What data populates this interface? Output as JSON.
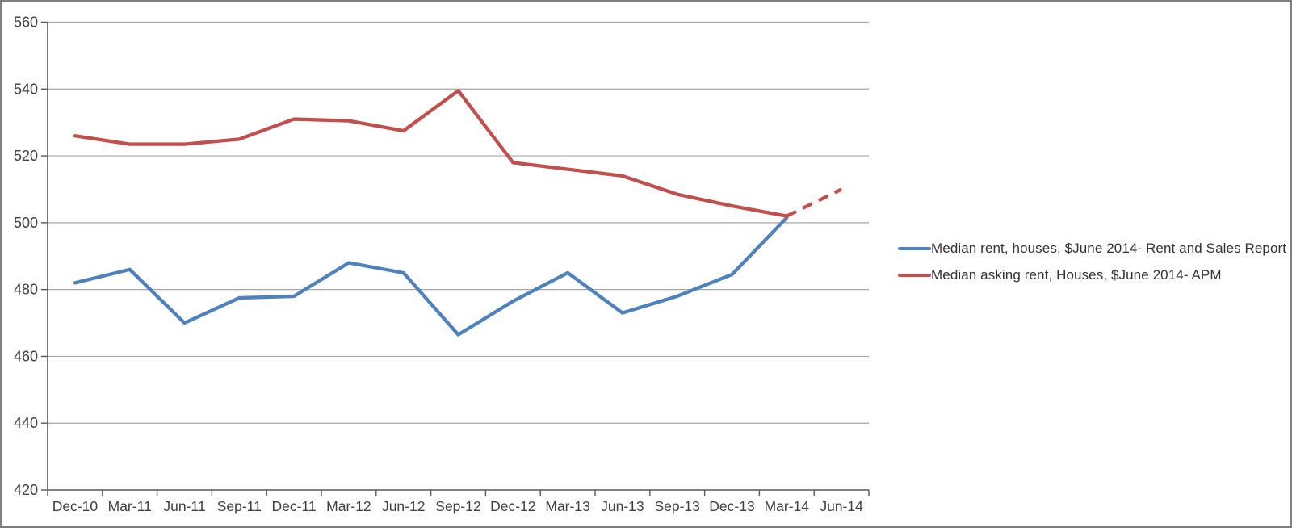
{
  "window": {
    "background": "#ffffff",
    "border_color": "#7f7f7f"
  },
  "chart_data": {
    "type": "line",
    "title": "",
    "categories": [
      "Dec-10",
      "Mar-11",
      "Jun-11",
      "Sep-11",
      "Dec-11",
      "Mar-12",
      "Jun-12",
      "Sep-12",
      "Dec-12",
      "Mar-13",
      "Jun-13",
      "Sep-13",
      "Dec-13",
      "Mar-14",
      "Jun-14"
    ],
    "series": [
      {
        "name": "Median rent, houses, $June 2014- Rent and Sales Report",
        "color": "#4F81BD",
        "values": [
          482,
          486,
          470,
          477.5,
          478,
          488,
          485,
          466.5,
          476.5,
          485,
          473,
          478,
          484.5,
          501.5,
          null
        ]
      },
      {
        "name": "Median asking rent, Houses, $June 2014- APM",
        "color": "#C0504D",
        "values": [
          526,
          523.5,
          523.5,
          525,
          531,
          530.5,
          527.5,
          539.5,
          518,
          516,
          514,
          508.5,
          505,
          502,
          510
        ],
        "dashed_from_index": 13
      }
    ],
    "y_axis": {
      "min": 420,
      "max": 560,
      "step": 20,
      "tick_labels": [
        "420",
        "440",
        "460",
        "480",
        "500",
        "520",
        "540",
        "560"
      ]
    },
    "x_axis": {
      "tick_labels": [
        "Dec-10",
        "Mar-11",
        "Jun-11",
        "Sep-11",
        "Dec-11",
        "Mar-12",
        "Jun-12",
        "Sep-12",
        "Dec-12",
        "Mar-13",
        "Jun-13",
        "Sep-13",
        "Dec-13",
        "Mar-14",
        "Jun-14"
      ]
    },
    "grid": "horizontal",
    "legend_position": "right",
    "colors": {
      "gridline": "#A6A6A6",
      "axis": "#595959",
      "tick_text": "#404040"
    }
  }
}
